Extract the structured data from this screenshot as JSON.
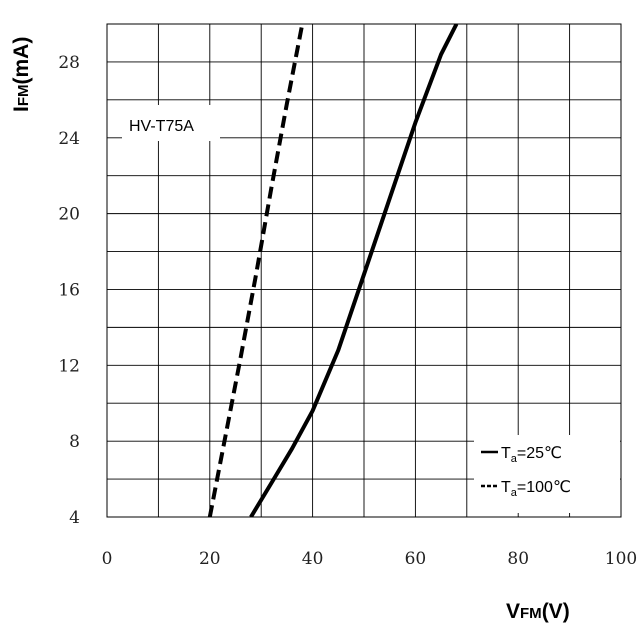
{
  "chart_data": {
    "type": "line",
    "xlabel": {
      "main": "V",
      "sub": "FM",
      "unit": "(V)"
    },
    "ylabel": {
      "main": "I",
      "sub": "FM",
      "unit": "(mA)"
    },
    "xlim": [
      0,
      100
    ],
    "ylim": [
      4,
      30
    ],
    "x_ticks": [
      0,
      20,
      40,
      60,
      80,
      100
    ],
    "y_ticks": [
      4,
      8,
      12,
      16,
      20,
      24,
      28
    ],
    "grid": true,
    "annotation": "HV-T75A",
    "legend_position": "bottom-right",
    "series": [
      {
        "name": "Ta=25℃",
        "label_main": "T",
        "label_sub": "a",
        "label_rest": "=25℃",
        "style": "solid",
        "color": "#000000",
        "x": [
          28,
          32,
          36,
          40,
          45,
          50,
          55,
          60,
          65,
          68
        ],
        "y": [
          4,
          5.8,
          7.6,
          9.6,
          12.8,
          16.8,
          20.8,
          24.8,
          28.4,
          30
        ]
      },
      {
        "name": "Ta=100℃",
        "label_main": "T",
        "label_sub": "a",
        "label_rest": "=100℃",
        "style": "dashed",
        "color": "#000000",
        "x": [
          20,
          23,
          26,
          29,
          32,
          35,
          38
        ],
        "y": [
          4,
          8.2,
          12.4,
          16.8,
          21.4,
          25.8,
          30
        ]
      }
    ]
  }
}
